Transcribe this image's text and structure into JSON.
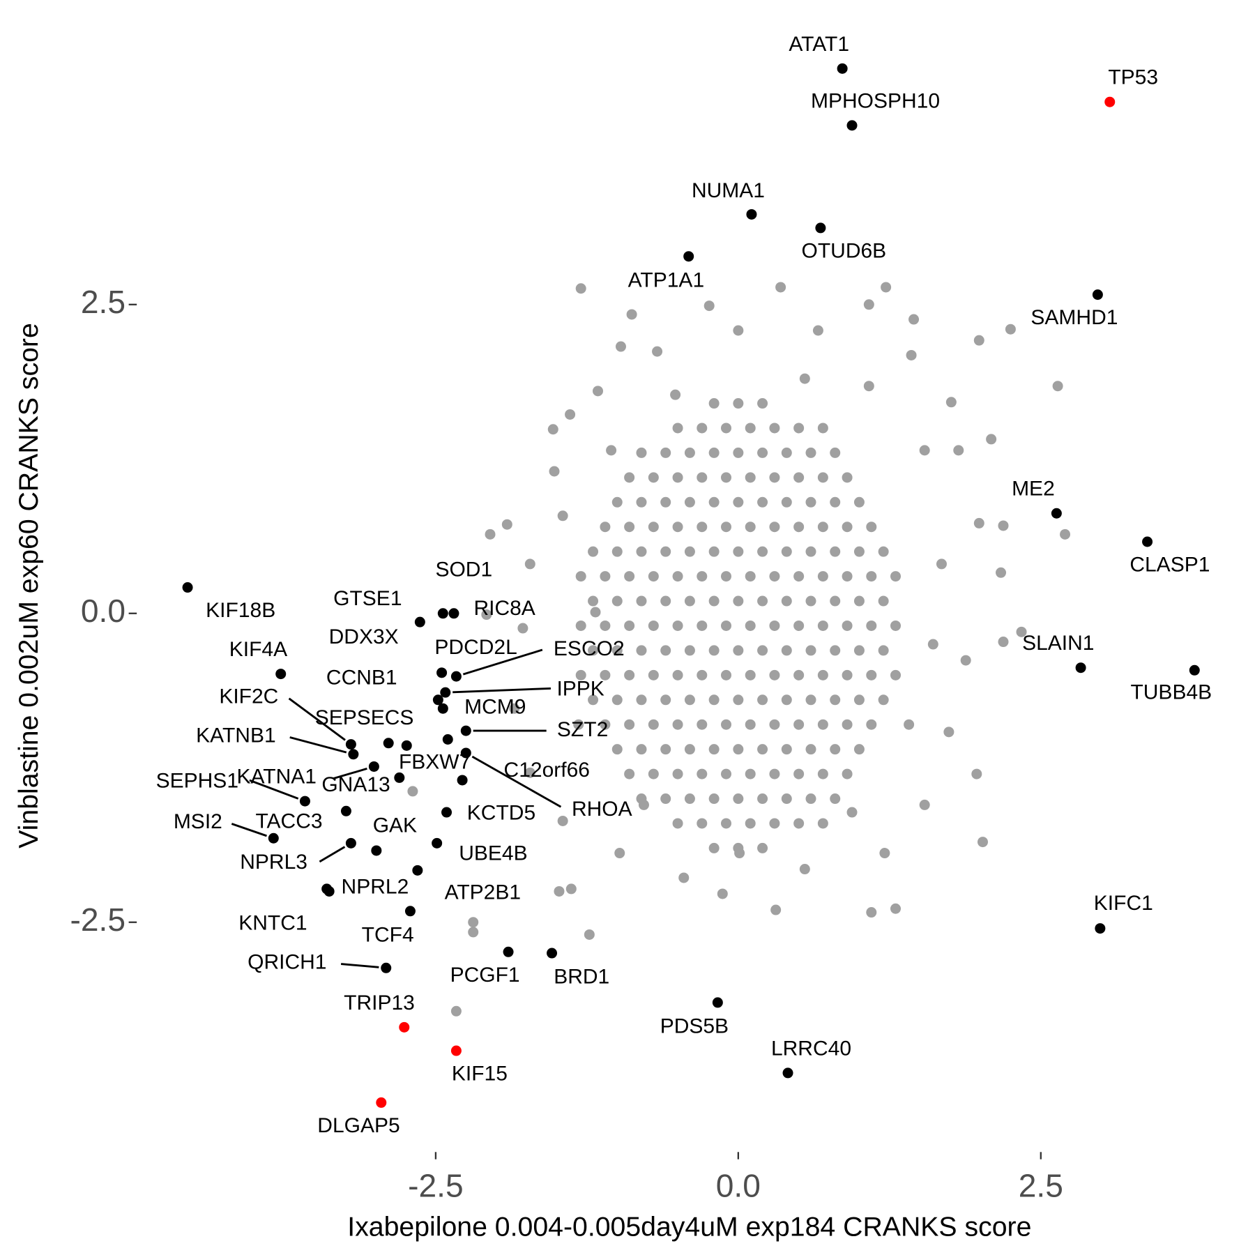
{
  "chart_data": {
    "type": "scatter",
    "x_label": "Ixabepilone 0.004-0.005day4uM exp184 CRANKS score",
    "y_label": "Vinblastine 0.002uM exp60 CRANKS score",
    "xlim": [
      -4.97,
      4.17
    ],
    "ylim": [
      -4.36,
      4.9
    ],
    "xticks": [
      -2.5,
      {
        "value": 0,
        "label": "0.0"
      },
      2.5
    ],
    "yticks": [
      -2.5,
      {
        "value": 0,
        "label": "0.0"
      },
      2.5
    ],
    "series": [
      {
        "color": "#a0a0a0",
        "x": [
          -0.2,
          0,
          0.2,
          -0.5,
          -0.3,
          -0.1,
          0.1,
          0.3,
          0.5,
          0.7,
          -0.8,
          -0.6,
          -0.4,
          -0.2,
          0,
          0.2,
          0.4,
          0.6,
          0.8,
          -0.9,
          -0.7,
          -0.5,
          -0.3,
          -0.1,
          0.1,
          0.3,
          0.5,
          0.7,
          0.9,
          -1,
          -0.8,
          -0.6,
          -0.4,
          -0.2,
          0,
          0.2,
          0.4,
          0.6,
          0.8,
          1,
          -1.1,
          -0.9,
          -0.7,
          -0.5,
          -0.3,
          -0.1,
          0.1,
          0.3,
          0.5,
          0.7,
          0.9,
          1.1,
          -1.2,
          -1,
          -0.8,
          -0.6,
          -0.4,
          -0.2,
          0,
          0.2,
          0.4,
          0.6,
          0.8,
          1,
          1.2,
          -1.3,
          -1.1,
          -0.9,
          -0.7,
          -0.5,
          -0.3,
          -0.1,
          0.1,
          0.3,
          0.5,
          0.7,
          0.9,
          1.1,
          1.3,
          -1.2,
          -1,
          -0.8,
          -0.6,
          -0.4,
          -0.2,
          0,
          0.2,
          0.4,
          0.6,
          0.8,
          1,
          1.2,
          -1.3,
          -1.1,
          -0.9,
          -0.7,
          -0.5,
          -0.3,
          -0.1,
          0.1,
          0.3,
          0.5,
          0.7,
          0.9,
          1.1,
          1.3,
          -1.2,
          -1,
          -0.8,
          -0.6,
          -0.4,
          -0.2,
          0,
          0.2,
          0.4,
          0.6,
          0.8,
          1,
          1.2,
          -1.3,
          -1.1,
          -0.9,
          -0.7,
          -0.5,
          -0.3,
          -0.1,
          0.1,
          0.3,
          0.5,
          0.7,
          0.9,
          1.1,
          1.3,
          -1.2,
          -1,
          -0.8,
          -0.6,
          -0.4,
          -0.2,
          0,
          0.2,
          0.4,
          0.6,
          0.8,
          1,
          1.2,
          -1.1,
          -0.9,
          -0.7,
          -0.5,
          -0.3,
          -0.1,
          0.1,
          0.3,
          0.5,
          0.7,
          0.9,
          1.1,
          -1,
          -0.8,
          -0.6,
          -0.4,
          -0.2,
          0,
          0.2,
          0.4,
          0.6,
          0.8,
          1,
          -0.9,
          -0.7,
          -0.5,
          -0.3,
          -0.1,
          0.1,
          0.3,
          0.5,
          0.7,
          0.9,
          -0.8,
          -0.6,
          -0.4,
          -0.2,
          0,
          0.2,
          0.4,
          0.6,
          0.8,
          -0.5,
          -0.3,
          -0.1,
          0.1,
          0.3,
          0.5,
          0.7,
          -0.2,
          0,
          0.2,
          -1.3,
          0.35,
          1.22,
          -0.88,
          -0.24,
          1.08,
          1.45,
          2.25,
          1.99,
          2.64,
          2.09,
          2.19,
          2.7,
          2.17,
          2.19,
          2.34,
          1.97,
          2.02,
          1.3,
          1.1,
          0.31,
          -0.13,
          -1.38,
          -1.48,
          -1.23,
          -2.19,
          -2.19,
          -2.33,
          -2.69,
          -2.08,
          -2.05,
          -1.91,
          -1.52,
          -1.53,
          -1.39,
          -1.16,
          -0.97,
          -0.67,
          0,
          0.66,
          1.43,
          1.76,
          1.82,
          1.99,
          1.88,
          1.74,
          1.54,
          1.21,
          0.55,
          -0.45,
          -0.98,
          -1.45,
          -1.72,
          -1.85,
          -1.78,
          -1.72,
          -1.45,
          -1.05,
          -0.52,
          0.55,
          1.08,
          1.54,
          1.68,
          1.61,
          1.41,
          0.94,
          0.01,
          -0.78,
          -1.32,
          -1.18
        ],
        "values": [
          1.7,
          1.7,
          1.7,
          1.5,
          1.5,
          1.5,
          1.5,
          1.5,
          1.5,
          1.5,
          1.3,
          1.3,
          1.3,
          1.3,
          1.3,
          1.3,
          1.3,
          1.3,
          1.3,
          1.1,
          1.1,
          1.1,
          1.1,
          1.1,
          1.1,
          1.1,
          1.1,
          1.1,
          1.1,
          0.9,
          0.9,
          0.9,
          0.9,
          0.9,
          0.9,
          0.9,
          0.9,
          0.9,
          0.9,
          0.9,
          0.7,
          0.7,
          0.7,
          0.7,
          0.7,
          0.7,
          0.7,
          0.7,
          0.7,
          0.7,
          0.7,
          0.7,
          0.5,
          0.5,
          0.5,
          0.5,
          0.5,
          0.5,
          0.5,
          0.5,
          0.5,
          0.5,
          0.5,
          0.5,
          0.5,
          0.3,
          0.3,
          0.3,
          0.3,
          0.3,
          0.3,
          0.3,
          0.3,
          0.3,
          0.3,
          0.3,
          0.3,
          0.3,
          0.3,
          0.1,
          0.1,
          0.1,
          0.1,
          0.1,
          0.1,
          0.1,
          0.1,
          0.1,
          0.1,
          0.1,
          0.1,
          0.1,
          -0.1,
          -0.1,
          -0.1,
          -0.1,
          -0.1,
          -0.1,
          -0.1,
          -0.1,
          -0.1,
          -0.1,
          -0.1,
          -0.1,
          -0.1,
          -0.1,
          -0.3,
          -0.3,
          -0.3,
          -0.3,
          -0.3,
          -0.3,
          -0.3,
          -0.3,
          -0.3,
          -0.3,
          -0.3,
          -0.3,
          -0.3,
          -0.5,
          -0.5,
          -0.5,
          -0.5,
          -0.5,
          -0.5,
          -0.5,
          -0.5,
          -0.5,
          -0.5,
          -0.5,
          -0.5,
          -0.5,
          -0.5,
          -0.7,
          -0.7,
          -0.7,
          -0.7,
          -0.7,
          -0.7,
          -0.7,
          -0.7,
          -0.7,
          -0.7,
          -0.7,
          -0.7,
          -0.7,
          -0.9,
          -0.9,
          -0.9,
          -0.9,
          -0.9,
          -0.9,
          -0.9,
          -0.9,
          -0.9,
          -0.9,
          -0.9,
          -0.9,
          -1.1,
          -1.1,
          -1.1,
          -1.1,
          -1.1,
          -1.1,
          -1.1,
          -1.1,
          -1.1,
          -1.1,
          -1.1,
          -1.3,
          -1.3,
          -1.3,
          -1.3,
          -1.3,
          -1.3,
          -1.3,
          -1.3,
          -1.3,
          -1.3,
          -1.5,
          -1.5,
          -1.5,
          -1.5,
          -1.5,
          -1.5,
          -1.5,
          -1.5,
          -1.5,
          -1.7,
          -1.7,
          -1.7,
          -1.7,
          -1.7,
          -1.7,
          -1.7,
          -1.9,
          -1.9,
          -1.9,
          2.63,
          2.64,
          2.64,
          2.42,
          2.49,
          2.5,
          2.38,
          2.3,
          2.21,
          1.84,
          1.41,
          0.71,
          0.64,
          0.33,
          -0.23,
          -0.15,
          -1.3,
          -1.85,
          -2.39,
          -2.42,
          -2.4,
          -2.27,
          -2.23,
          -2.25,
          -2.6,
          -2.5,
          -2.58,
          -3.22,
          -1.44,
          -0.01,
          0.64,
          0.72,
          1.15,
          1.49,
          1.61,
          1.8,
          2.16,
          2.12,
          2.29,
          2.29,
          2.09,
          1.71,
          1.32,
          0.73,
          -0.38,
          -0.96,
          -1.55,
          -1.94,
          -2.07,
          -2.14,
          -1.94,
          -1.68,
          -1.29,
          -0.77,
          -0.12,
          0.4,
          0.79,
          1.32,
          1.77,
          1.9,
          1.84,
          1.32,
          0.4,
          -0.25,
          -0.9,
          -1.61,
          -1.94,
          -1.55,
          -0.9,
          0.01
        ]
      },
      {
        "color": "#000000",
        "labels": [
          "ATAT1",
          "MPHOSPH10",
          "NUMA1",
          "OTUD6B",
          "ATP1A1",
          "SAMHD1",
          "ME2",
          "CLASP1",
          "SLAIN1",
          "TUBB4B",
          "KIFC1",
          "PDS5B",
          "LRRC40",
          "KIF18B",
          "GTSE1",
          "SOD1",
          "RIC8A",
          "DDX3X",
          "ESCO2",
          "PDCD2L",
          "IPPK",
          "CCNB1",
          "MCM9",
          "SZT2",
          "KIF4A",
          "KIF2C",
          "KATNB1",
          "SEPSECS",
          "FBXW7",
          "C12orf66",
          "RHOA",
          "KATNA1",
          "GNA13",
          "SEPHS1",
          "TACC3",
          "KCTD5",
          "MSI2",
          "NPRL3",
          "GAK",
          "UBE4B",
          "ATP2B1",
          "NPRL2",
          "KNTC1",
          "TCF4",
          "PCGF1",
          "BRD1",
          "QRICH1"
        ],
        "x": [
          0.86,
          0.94,
          0.11,
          0.68,
          -0.41,
          2.97,
          2.63,
          3.38,
          2.83,
          3.77,
          2.99,
          -0.17,
          0.41,
          -4.55,
          -2.63,
          -2.44,
          -2.35,
          -2.45,
          -2.33,
          -2.48,
          -2.42,
          -2.44,
          -2.4,
          -2.25,
          -3.78,
          -3.2,
          -3.18,
          -2.89,
          -2.74,
          -2.28,
          -2.25,
          -3.01,
          -2.8,
          -3.58,
          -3.24,
          -2.41,
          -3.84,
          -3.2,
          -2.99,
          -2.49,
          -2.65,
          -3.4,
          -3.38,
          -2.71,
          -1.9,
          -1.54,
          -2.91
        ],
        "values": [
          4.41,
          3.95,
          3.23,
          3.12,
          2.89,
          2.58,
          0.81,
          0.58,
          -0.44,
          -0.46,
          -2.55,
          -3.15,
          -3.72,
          0.21,
          -0.07,
          0.0,
          0.0,
          -0.48,
          -0.51,
          -0.7,
          -0.64,
          -0.77,
          -1.02,
          -0.95,
          -0.49,
          -1.06,
          -1.14,
          -1.05,
          -1.07,
          -1.35,
          -1.13,
          -1.24,
          -1.33,
          -1.52,
          -1.6,
          -1.61,
          -1.82,
          -1.86,
          -1.92,
          -1.86,
          -2.08,
          -2.23,
          -2.25,
          -2.41,
          -2.74,
          -2.75,
          -2.87
        ]
      },
      {
        "color": "#ff0000",
        "labels": [
          "TP53",
          "TRIP13",
          "KIF15",
          "DLGAP5"
        ],
        "x": [
          3.07,
          -2.76,
          -2.33,
          -2.95
        ],
        "values": [
          4.14,
          -3.35,
          -3.54,
          -3.96
        ]
      }
    ]
  }
}
